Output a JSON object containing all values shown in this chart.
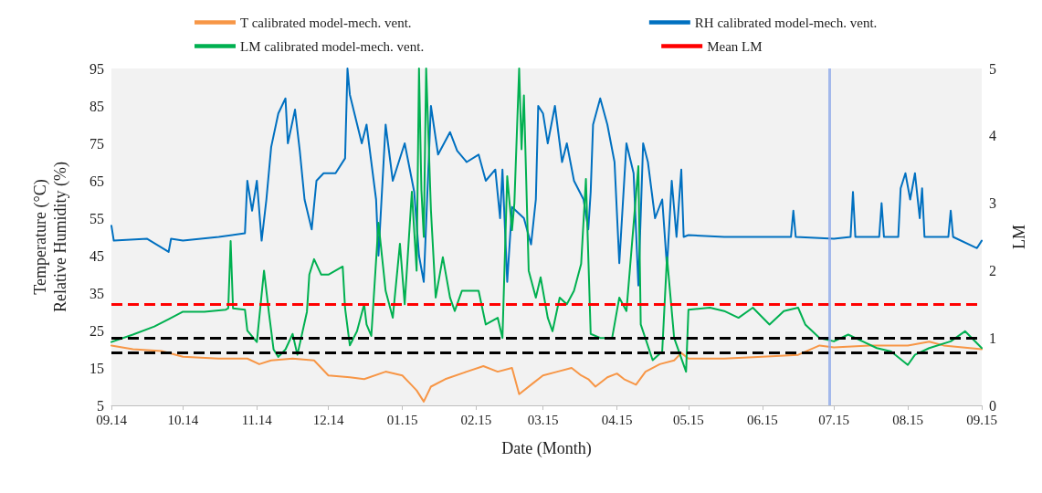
{
  "chart_data": {
    "type": "line",
    "xlabel": "Date (Month)",
    "ylabel": "Temperature (°C)\nRelative Humidity (%)",
    "y2label": "LM",
    "xlim": [
      "2014-09-01",
      "2015-09-01"
    ],
    "xticks": [
      {
        "value": "2014-09-01",
        "label": "09.14"
      },
      {
        "value": "2014-10-01",
        "label": "10.14"
      },
      {
        "value": "2014-11-01",
        "label": "11.14"
      },
      {
        "value": "2014-12-01",
        "label": "12.14"
      },
      {
        "value": "2015-01-01",
        "label": "01.15"
      },
      {
        "value": "2015-02-01",
        "label": "02.15"
      },
      {
        "value": "2015-03-01",
        "label": "03.15"
      },
      {
        "value": "2015-04-01",
        "label": "04.15"
      },
      {
        "value": "2015-05-01",
        "label": "05.15"
      },
      {
        "value": "2015-06-01",
        "label": "06.15"
      },
      {
        "value": "2015-07-01",
        "label": "07.15"
      },
      {
        "value": "2015-08-01",
        "label": "08.15"
      },
      {
        "value": "2015-09-01",
        "label": "09.15"
      }
    ],
    "ylim": [
      5,
      95
    ],
    "yticks": [
      5,
      15,
      25,
      35,
      45,
      55,
      65,
      75,
      85,
      95
    ],
    "y2lim": [
      0,
      5
    ],
    "y2ticks": [
      0,
      1,
      2,
      3,
      4,
      5
    ],
    "grid": false,
    "legend": "top",
    "marker": "none",
    "line_style": "solid",
    "series": [
      {
        "name": "T calibrated model-mech. vent.",
        "color": "#f79646",
        "x": [
          "2014-09-01",
          "2014-09-10",
          "2014-09-22",
          "2014-10-01",
          "2014-10-16",
          "2014-10-28",
          "2014-11-02",
          "2014-11-07",
          "2014-11-16",
          "2014-11-25",
          "2014-12-01",
          "2014-12-10",
          "2014-12-16",
          "2014-12-25",
          "2015-01-01",
          "2015-01-04",
          "2015-01-07",
          "2015-01-10",
          "2015-01-13",
          "2015-01-19",
          "2015-01-28",
          "2015-02-04",
          "2015-02-10",
          "2015-02-16",
          "2015-02-19",
          "2015-02-25",
          "2015-03-01",
          "2015-03-07",
          "2015-03-13",
          "2015-03-17",
          "2015-03-20",
          "2015-03-23",
          "2015-03-28",
          "2015-04-01",
          "2015-04-04",
          "2015-04-09",
          "2015-04-13",
          "2015-04-19",
          "2015-04-25",
          "2015-04-28",
          "2015-05-01",
          "2015-05-16",
          "2015-06-01",
          "2015-06-16",
          "2015-06-25",
          "2015-07-01",
          "2015-07-16",
          "2015-08-01",
          "2015-08-10",
          "2015-08-16",
          "2015-09-01"
        ],
        "values": [
          21,
          20,
          19.5,
          18,
          17.5,
          17.5,
          16,
          17,
          17.5,
          17,
          13,
          12.5,
          12,
          14,
          13,
          11,
          9,
          6,
          10,
          12,
          14,
          15.5,
          14,
          15,
          8,
          11,
          13,
          14,
          15,
          13,
          12,
          10,
          12.5,
          13.5,
          12,
          10.5,
          14,
          16,
          17,
          19,
          17.5,
          17.5,
          18,
          18.5,
          21,
          20.5,
          21,
          21,
          22,
          21,
          20
        ]
      },
      {
        "name": "RH calibrated model-mech. vent.",
        "color": "#0070c0",
        "x": [
          "2014-09-01",
          "2014-09-02",
          "2014-09-16",
          "2014-09-25",
          "2014-09-26",
          "2014-10-01",
          "2014-10-16",
          "2014-10-27",
          "2014-10-28",
          "2014-10-30",
          "2014-11-01",
          "2014-11-03",
          "2014-11-05",
          "2014-11-07",
          "2014-11-10",
          "2014-11-13",
          "2014-11-14",
          "2014-11-17",
          "2014-11-19",
          "2014-11-21",
          "2014-11-24",
          "2014-11-26",
          "2014-11-29",
          "2014-12-04",
          "2014-12-08",
          "2014-12-09",
          "2014-12-10",
          "2014-12-15",
          "2014-12-17",
          "2014-12-21",
          "2014-12-22",
          "2014-12-25",
          "2014-12-28",
          "2015-01-02",
          "2015-01-06",
          "2015-01-08",
          "2015-01-10",
          "2015-01-13",
          "2015-01-16",
          "2015-01-21",
          "2015-01-24",
          "2015-01-28",
          "2015-02-02",
          "2015-02-05",
          "2015-02-09",
          "2015-02-11",
          "2015-02-12",
          "2015-02-14",
          "2015-02-16",
          "2015-02-21",
          "2015-02-24",
          "2015-02-26",
          "2015-02-27",
          "2015-03-01",
          "2015-03-03",
          "2015-03-06",
          "2015-03-09",
          "2015-03-11",
          "2015-03-14",
          "2015-03-18",
          "2015-03-20",
          "2015-03-21",
          "2015-03-22",
          "2015-03-25",
          "2015-03-28",
          "2015-03-31",
          "2015-04-02",
          "2015-04-05",
          "2015-04-08",
          "2015-04-10",
          "2015-04-12",
          "2015-04-14",
          "2015-04-17",
          "2015-04-20",
          "2015-04-22",
          "2015-04-24",
          "2015-04-26",
          "2015-04-28",
          "2015-04-29",
          "2015-05-01",
          "2015-05-16",
          "2015-06-01",
          "2015-06-13",
          "2015-06-14",
          "2015-06-15",
          "2015-07-01",
          "2015-07-08",
          "2015-07-09",
          "2015-07-10",
          "2015-07-20",
          "2015-07-21",
          "2015-07-22",
          "2015-07-28",
          "2015-07-29",
          "2015-07-31",
          "2015-08-02",
          "2015-08-04",
          "2015-08-06",
          "2015-08-07",
          "2015-08-08",
          "2015-08-11",
          "2015-08-18",
          "2015-08-19",
          "2015-08-20",
          "2015-08-30",
          "2015-09-01"
        ],
        "values": [
          53,
          49,
          49.5,
          46,
          49.5,
          49,
          50,
          51,
          65,
          57,
          65,
          49,
          60,
          74,
          83,
          87,
          75,
          84,
          73,
          60,
          52,
          65,
          67,
          67,
          71,
          95,
          88,
          75,
          80,
          60,
          45,
          80,
          65,
          75,
          62,
          45,
          38,
          85,
          72,
          78,
          73,
          70,
          72,
          65,
          68,
          55,
          68,
          38,
          58,
          55,
          48,
          60,
          85,
          83,
          75,
          85,
          70,
          75,
          65,
          60,
          52,
          62,
          80,
          87,
          80,
          70,
          43,
          75,
          67,
          37,
          75,
          70,
          55,
          60,
          42,
          65,
          50,
          68,
          50,
          50.5,
          50,
          50,
          50,
          57,
          50,
          49.5,
          50,
          62,
          50,
          50,
          59,
          50,
          50,
          63,
          67,
          60,
          67,
          55,
          63,
          50,
          50,
          50,
          57,
          50,
          47,
          49
        ]
      },
      {
        "name": "LM calibrated model-mech. vent.",
        "color": "#00b050",
        "axis": "y2",
        "x": [
          "2014-09-01",
          "2014-09-10",
          "2014-09-19",
          "2014-09-25",
          "2014-10-01",
          "2014-10-10",
          "2014-10-19",
          "2014-10-20",
          "2014-10-21",
          "2014-10-22",
          "2014-10-27",
          "2014-10-28",
          "2014-11-01",
          "2014-11-04",
          "2014-11-06",
          "2014-11-08",
          "2014-11-10",
          "2014-11-13",
          "2014-11-16",
          "2014-11-18",
          "2014-11-22",
          "2014-11-23",
          "2014-11-25",
          "2014-11-28",
          "2014-12-01",
          "2014-12-07",
          "2014-12-08",
          "2014-12-10",
          "2014-12-13",
          "2014-12-16",
          "2014-12-17",
          "2014-12-19",
          "2014-12-22",
          "2014-12-25",
          "2014-12-28",
          "2014-12-31",
          "2015-01-02",
          "2015-01-05",
          "2015-01-07",
          "2015-01-08",
          "2015-01-09",
          "2015-01-10",
          "2015-01-11",
          "2015-01-13",
          "2015-01-15",
          "2015-01-18",
          "2015-01-21",
          "2015-01-23",
          "2015-01-26",
          "2015-02-02",
          "2015-02-05",
          "2015-02-10",
          "2015-02-12",
          "2015-02-14",
          "2015-02-16",
          "2015-02-17",
          "2015-02-19",
          "2015-02-20",
          "2015-02-21",
          "2015-02-23",
          "2015-02-26",
          "2015-02-28",
          "2015-03-03",
          "2015-03-05",
          "2015-03-08",
          "2015-03-11",
          "2015-03-14",
          "2015-03-17",
          "2015-03-19",
          "2015-03-21",
          "2015-03-25",
          "2015-03-30",
          "2015-04-02",
          "2015-04-05",
          "2015-04-10",
          "2015-04-11",
          "2015-04-16",
          "2015-04-20",
          "2015-04-22",
          "2015-04-25",
          "2015-04-30",
          "2015-05-01",
          "2015-05-10",
          "2015-05-16",
          "2015-05-22",
          "2015-05-28",
          "2015-06-04",
          "2015-06-10",
          "2015-06-16",
          "2015-06-19",
          "2015-06-25",
          "2015-07-01",
          "2015-07-07",
          "2015-07-13",
          "2015-07-19",
          "2015-07-25",
          "2015-08-01",
          "2015-08-04",
          "2015-08-10",
          "2015-08-19",
          "2015-08-25",
          "2015-09-01"
        ],
        "values": [
          0.94,
          1.05,
          1.17,
          1.28,
          1.39,
          1.39,
          1.42,
          1.44,
          2.44,
          1.44,
          1.42,
          1.11,
          0.94,
          2.0,
          1.39,
          0.83,
          0.72,
          0.83,
          1.06,
          0.75,
          1.39,
          1.94,
          2.17,
          1.94,
          1.94,
          2.06,
          1.44,
          0.89,
          1.1,
          1.5,
          1.2,
          1.03,
          2.71,
          1.7,
          1.3,
          2.4,
          1.5,
          3.17,
          2.0,
          5.0,
          3.2,
          2.5,
          5.0,
          2.9,
          1.6,
          2.2,
          1.6,
          1.4,
          1.7,
          1.7,
          1.2,
          1.3,
          1.0,
          3.4,
          2.6,
          3.0,
          5.0,
          3.8,
          4.6,
          2.0,
          1.6,
          1.9,
          1.3,
          1.1,
          1.6,
          1.5,
          1.7,
          2.1,
          3.36,
          1.06,
          1.0,
          1.0,
          1.6,
          1.4,
          3.55,
          1.2,
          0.67,
          0.8,
          2.2,
          1.0,
          0.5,
          1.42,
          1.45,
          1.4,
          1.3,
          1.45,
          1.2,
          1.4,
          1.45,
          1.2,
          1.0,
          0.95,
          1.05,
          0.95,
          0.85,
          0.8,
          0.6,
          0.75,
          0.85,
          0.95,
          1.1,
          0.85
        ]
      }
    ],
    "ref_lines": [
      {
        "axis": "y2",
        "value": 1.5,
        "label": "Mean LM",
        "color": "#ff0000",
        "line_style": "dashed"
      },
      {
        "axis": "y2",
        "value": 1.0,
        "color": "#000000",
        "line_style": "dashed"
      },
      {
        "axis": "y2",
        "value": 0.78,
        "color": "#000000",
        "line_style": "dashed"
      },
      {
        "axis": "x",
        "value": "2015-06-29",
        "color": "#8ea9e8",
        "line_style": "solid"
      }
    ]
  }
}
